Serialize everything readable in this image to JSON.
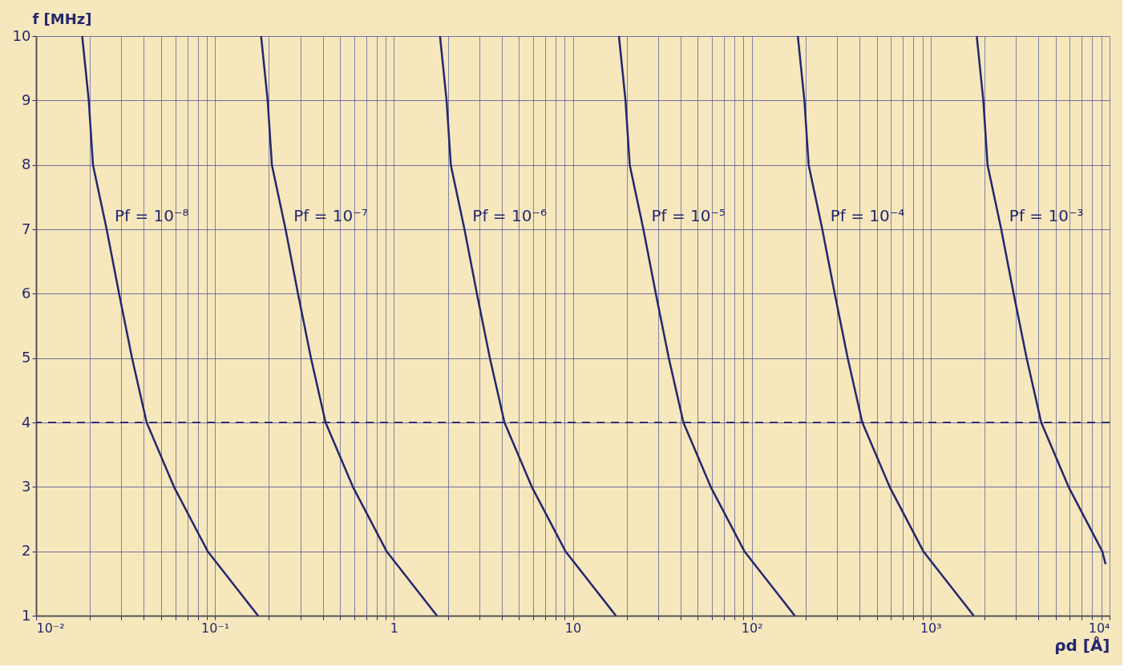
{
  "chart_data": {
    "type": "line",
    "xlabel": "ρd [Å]",
    "ylabel": "f [MHz]",
    "log": "x",
    "grid": true,
    "marker": "none",
    "line_style": "solid",
    "xlim": [
      0.01,
      10000
    ],
    "ylim": [
      1,
      10
    ],
    "xticks": [
      {
        "value": 0.01,
        "label": "10⁻²"
      },
      {
        "value": 0.02,
        "label": null
      },
      {
        "value": 0.03,
        "label": null
      },
      {
        "value": 0.04,
        "label": null
      },
      {
        "value": 0.05,
        "label": null
      },
      {
        "value": 0.06,
        "label": null
      },
      {
        "value": 0.07,
        "label": null
      },
      {
        "value": 0.08,
        "label": null
      },
      {
        "value": 0.09,
        "label": null
      },
      {
        "value": 0.1,
        "label": "10⁻¹"
      },
      {
        "value": 0.2,
        "label": null
      },
      {
        "value": 0.3,
        "label": null
      },
      {
        "value": 0.4,
        "label": null
      },
      {
        "value": 0.5,
        "label": null
      },
      {
        "value": 0.6,
        "label": null
      },
      {
        "value": 0.7,
        "label": null
      },
      {
        "value": 0.8,
        "label": null
      },
      {
        "value": 0.9,
        "label": null
      },
      {
        "value": 1,
        "label": "1"
      },
      {
        "value": 2,
        "label": null
      },
      {
        "value": 3,
        "label": null
      },
      {
        "value": 4,
        "label": null
      },
      {
        "value": 5,
        "label": null
      },
      {
        "value": 6,
        "label": null
      },
      {
        "value": 7,
        "label": null
      },
      {
        "value": 8,
        "label": null
      },
      {
        "value": 9,
        "label": null
      },
      {
        "value": 10,
        "label": "10"
      },
      {
        "value": 20,
        "label": null
      },
      {
        "value": 30,
        "label": null
      },
      {
        "value": 40,
        "label": null
      },
      {
        "value": 50,
        "label": null
      },
      {
        "value": 60,
        "label": null
      },
      {
        "value": 70,
        "label": null
      },
      {
        "value": 80,
        "label": null
      },
      {
        "value": 90,
        "label": null
      },
      {
        "value": 100,
        "label": "10²"
      },
      {
        "value": 200,
        "label": null
      },
      {
        "value": 300,
        "label": null
      },
      {
        "value": 400,
        "label": null
      },
      {
        "value": 500,
        "label": null
      },
      {
        "value": 600,
        "label": null
      },
      {
        "value": 700,
        "label": null
      },
      {
        "value": 800,
        "label": null
      },
      {
        "value": 900,
        "label": null
      },
      {
        "value": 1000,
        "label": "10³"
      },
      {
        "value": 2000,
        "label": null
      },
      {
        "value": 3000,
        "label": null
      },
      {
        "value": 4000,
        "label": null
      },
      {
        "value": 5000,
        "label": null
      },
      {
        "value": 6000,
        "label": null
      },
      {
        "value": 7000,
        "label": null
      },
      {
        "value": 8000,
        "label": null
      },
      {
        "value": 9000,
        "label": null
      },
      {
        "value": 10000,
        "label": "10⁴"
      }
    ],
    "yticks": [
      1,
      2,
      3,
      4,
      5,
      6,
      7,
      8,
      9,
      10
    ],
    "ref_lines": [
      {
        "axis": "y",
        "value": 4,
        "line_style": "dashed",
        "color": "#2b2f7a"
      }
    ],
    "series": [
      {
        "name": "Pf = 10⁻⁸",
        "color": "#24286e",
        "x": [
          0.0181,
          0.0197,
          0.0208,
          0.0248,
          0.0291,
          0.0344,
          0.0415,
          0.059,
          0.091,
          0.174
        ],
        "values": [
          10,
          9,
          8,
          7,
          6,
          5,
          4,
          3,
          2,
          1
        ]
      },
      {
        "name": "Pf = 10⁻⁷",
        "color": "#24286e",
        "x": [
          0.181,
          0.197,
          0.208,
          0.248,
          0.291,
          0.344,
          0.415,
          0.59,
          0.91,
          1.74
        ],
        "values": [
          10,
          9,
          8,
          7,
          6,
          5,
          4,
          3,
          2,
          1
        ]
      },
      {
        "name": "Pf = 10⁻⁶",
        "color": "#24286e",
        "x": [
          1.81,
          1.97,
          2.08,
          2.48,
          2.91,
          3.44,
          4.15,
          5.9,
          9.1,
          17.4
        ],
        "values": [
          10,
          9,
          8,
          7,
          6,
          5,
          4,
          3,
          2,
          1
        ]
      },
      {
        "name": "Pf = 10⁻⁵",
        "color": "#24286e",
        "x": [
          18.1,
          19.7,
          20.8,
          24.8,
          29.1,
          34.4,
          41.5,
          59,
          91,
          174
        ],
        "values": [
          10,
          9,
          8,
          7,
          6,
          5,
          4,
          3,
          2,
          1
        ]
      },
      {
        "name": "Pf = 10⁻⁴",
        "color": "#24286e",
        "x": [
          181,
          197,
          208,
          248,
          291,
          344,
          415,
          590,
          910,
          1740
        ],
        "values": [
          10,
          9,
          8,
          7,
          6,
          5,
          4,
          3,
          2,
          1
        ]
      },
      {
        "name": "Pf = 10⁻³",
        "color": "#24286e",
        "x": [
          1810,
          1970,
          2080,
          2480,
          2910,
          3440,
          4150,
          5900,
          9100,
          9500
        ],
        "values": [
          10,
          9,
          8,
          7,
          6,
          5,
          4,
          3,
          2,
          1.8
        ]
      }
    ]
  }
}
